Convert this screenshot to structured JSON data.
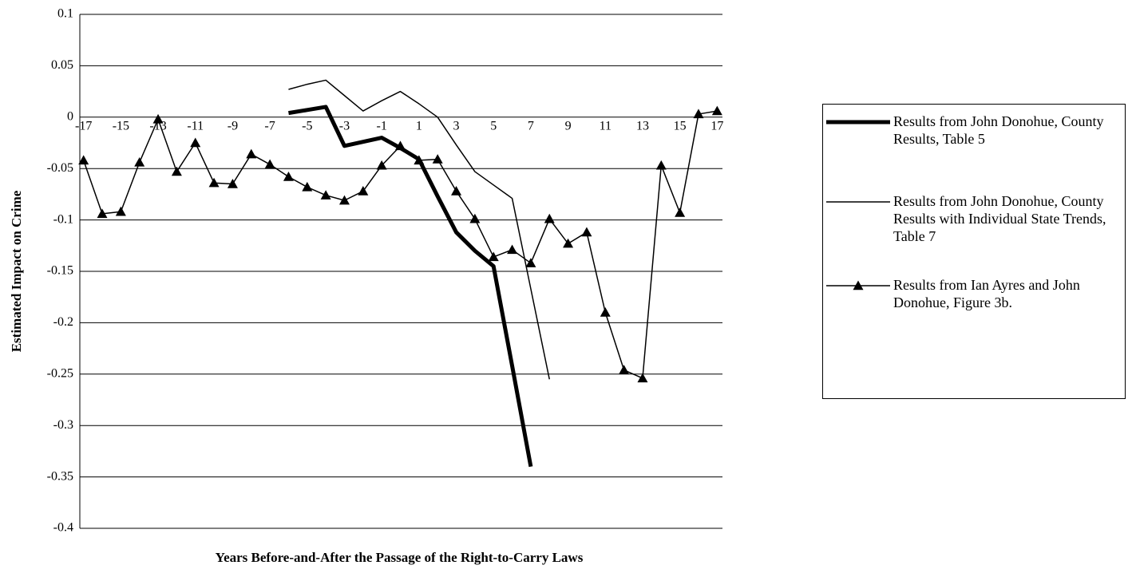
{
  "chart_data": {
    "type": "line",
    "x_label": "Years Before-and-After the Passage of the Right-to-Carry Laws",
    "y_label": "Estimated Impact on Crime",
    "categories": [
      "-17",
      null,
      "-15",
      null,
      "-13",
      null,
      "-11",
      null,
      "-9",
      null,
      "-7",
      null,
      "-5",
      null,
      "-3",
      null,
      "-1",
      null,
      "1",
      null,
      "3",
      null,
      "5",
      null,
      "7",
      null,
      "9",
      null,
      "11",
      null,
      "13",
      null,
      "15",
      null,
      "17"
    ],
    "ylim": [
      -0.4,
      0.1
    ],
    "yticks": [
      0.1,
      0.05,
      0,
      -0.05,
      -0.1,
      -0.15,
      -0.2,
      -0.25,
      -0.3,
      -0.35,
      -0.4
    ],
    "grid": true,
    "legend": "right",
    "series": [
      {
        "name": "Results from John Donohue, County Results, Table 5",
        "color": "#000000",
        "width": 5,
        "marker": "none",
        "values": [
          null,
          null,
          null,
          null,
          null,
          null,
          null,
          null,
          null,
          null,
          null,
          0.004,
          0.007,
          0.01,
          -0.028,
          -0.024,
          -0.02,
          -0.03,
          -0.041,
          -0.077,
          -0.112,
          -0.13,
          -0.145,
          -0.242,
          -0.34,
          null,
          null,
          null,
          null,
          null,
          null,
          null,
          null,
          null,
          null
        ]
      },
      {
        "name": "Results from John Donohue, County Results with Individual State Trends, Table 7",
        "color": "#000000",
        "width": 1.5,
        "marker": "none",
        "values": [
          null,
          null,
          null,
          null,
          null,
          null,
          null,
          null,
          null,
          null,
          null,
          0.027,
          0.032,
          0.036,
          0.021,
          0.006,
          0.016,
          0.025,
          0.013,
          0.0,
          -0.027,
          -0.053,
          -0.066,
          -0.079,
          -0.167,
          -0.255,
          null,
          null,
          null,
          null,
          null,
          null,
          null,
          null,
          null
        ]
      },
      {
        "name": "Results from Ian Ayres and John Donohue, Figure 3b.",
        "color": "#000000",
        "width": 1.5,
        "marker": "triangle",
        "values": [
          -0.042,
          -0.094,
          -0.092,
          -0.044,
          -0.002,
          -0.053,
          -0.025,
          -0.064,
          -0.065,
          -0.036,
          -0.046,
          -0.058,
          -0.068,
          -0.076,
          -0.081,
          -0.072,
          -0.047,
          -0.028,
          -0.042,
          -0.041,
          -0.072,
          -0.099,
          -0.136,
          -0.129,
          -0.142,
          -0.099,
          -0.123,
          -0.112,
          -0.19,
          -0.246,
          -0.254,
          -0.047,
          -0.093,
          0.003,
          0.006
        ]
      }
    ]
  }
}
